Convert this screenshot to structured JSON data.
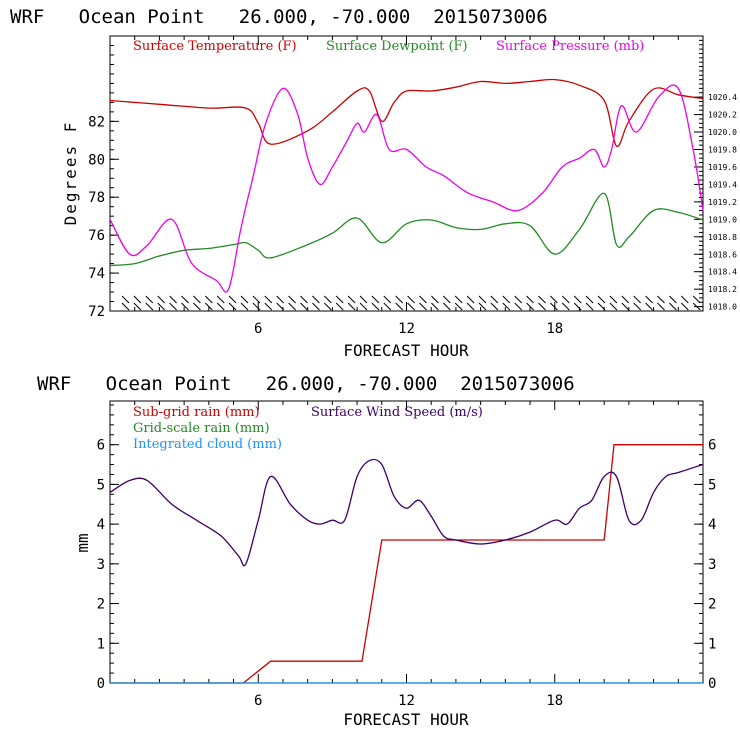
{
  "chart_data": [
    {
      "type": "line",
      "title": "WRF   Ocean Point   26.000, -70.000  2015073006",
      "xlabel": "FORECAST HOUR",
      "ylabel": "Degrees F",
      "xlim": [
        0,
        24
      ],
      "ylim": [
        72,
        86.5
      ],
      "y2lim": [
        1017.95,
        1021.1
      ],
      "x_ticks": [
        6,
        12,
        18
      ],
      "y_ticks": [
        72,
        74,
        76,
        78,
        80,
        82
      ],
      "y2_ticks": [
        1018.0,
        1018.2,
        1018.4,
        1018.6,
        1018.8,
        1019.0,
        1019.2,
        1019.4,
        1019.6,
        1019.8,
        1020.0,
        1020.2,
        1020.4
      ],
      "y2_tick_labels": [
        "1018.0",
        "1018.2",
        "1018.4",
        "1018.6",
        "1018.8",
        "1019.0",
        "1019.2",
        "1019.4",
        "1019.6",
        "1019.8",
        "1020.0",
        "1020.2",
        "1020.4"
      ],
      "wind_barbs": "calm barbs along bottom of panel",
      "series": [
        {
          "name": "Surface Temperature (F)",
          "color": "#cc0000",
          "axis": "left",
          "x": [
            0,
            2,
            4,
            5.5,
            6,
            6.5,
            8,
            9,
            10,
            10.5,
            11,
            11.5,
            12,
            13,
            14,
            15,
            16,
            17,
            18,
            19,
            20,
            20.5,
            21,
            22,
            23,
            24
          ],
          "y": [
            83.1,
            82.9,
            82.7,
            82.7,
            81.9,
            80.8,
            81.5,
            82.5,
            83.6,
            83.6,
            82.0,
            83.0,
            83.6,
            83.6,
            83.8,
            84.1,
            84.0,
            84.1,
            84.2,
            83.9,
            83.1,
            80.7,
            82.0,
            83.7,
            83.4,
            83.2
          ]
        },
        {
          "name": "Surface Dewpoint (F)",
          "color": "#228b22",
          "axis": "left",
          "x": [
            0,
            1,
            2,
            3,
            4,
            5,
            5.5,
            6,
            6.5,
            8,
            9,
            10,
            11,
            12,
            13,
            14,
            15,
            16,
            17,
            18,
            19,
            20,
            20.5,
            21,
            22,
            23,
            24
          ],
          "y": [
            74.4,
            74.5,
            74.9,
            75.2,
            75.3,
            75.5,
            75.6,
            75.2,
            74.8,
            75.5,
            76.1,
            76.9,
            75.6,
            76.6,
            76.8,
            76.4,
            76.3,
            76.6,
            76.5,
            75.0,
            76.3,
            78.2,
            75.5,
            75.9,
            77.3,
            77.2,
            76.8
          ]
        },
        {
          "name": "Surface Pressure (mb)",
          "color": "#ee00ee",
          "axis": "right",
          "x": [
            0,
            0.8,
            1.5,
            2.5,
            3.3,
            4.3,
            4.8,
            5.3,
            5.8,
            6.3,
            7,
            7.6,
            8,
            8.5,
            9,
            9.6,
            10,
            10.3,
            10.8,
            11.3,
            12,
            12.8,
            13.5,
            14.5,
            15.5,
            16.5,
            17.5,
            18.3,
            19,
            19.6,
            20,
            20.3,
            20.7,
            21.3,
            22.2,
            23,
            23.6,
            24
          ],
          "y": [
            1019.0,
            1018.6,
            1018.7,
            1019.0,
            1018.5,
            1018.3,
            1018.2,
            1018.9,
            1019.5,
            1020.1,
            1020.5,
            1020.2,
            1019.7,
            1019.4,
            1019.6,
            1019.9,
            1020.1,
            1020.0,
            1020.2,
            1019.8,
            1019.8,
            1019.6,
            1019.5,
            1019.3,
            1019.2,
            1019.1,
            1019.3,
            1019.6,
            1019.7,
            1019.8,
            1019.6,
            1019.8,
            1020.3,
            1020.0,
            1020.4,
            1020.5,
            1019.8,
            1019.1
          ]
        }
      ]
    },
    {
      "type": "line",
      "title": "WRF   Ocean Point   26.000, -70.000  2015073006",
      "xlabel": "FORECAST HOUR",
      "ylabel": "mm",
      "xlim": [
        0,
        24
      ],
      "ylim": [
        0,
        7.1
      ],
      "y2lim": [
        0,
        7.1
      ],
      "x_ticks": [
        6,
        12,
        18
      ],
      "y_ticks": [
        0,
        1,
        2,
        3,
        4,
        5,
        6
      ],
      "y2_ticks": [
        0,
        1,
        2,
        3,
        4,
        5,
        6
      ],
      "series": [
        {
          "name": "Sub-grid rain (mm)",
          "color": "#cc0000",
          "axis": "left",
          "x": [
            0,
            5.4,
            6.5,
            10.2,
            11,
            20,
            20.4,
            24
          ],
          "y": [
            0,
            0,
            0.55,
            0.55,
            3.6,
            3.6,
            6.0,
            6.0
          ]
        },
        {
          "name": "Grid-scale rain (mm)",
          "color": "#228b22",
          "axis": "left",
          "x": [
            0,
            24
          ],
          "y": [
            0,
            0
          ]
        },
        {
          "name": "Integrated cloud (mm)",
          "color": "#1e90ff",
          "axis": "left",
          "x": [
            0,
            24
          ],
          "y": [
            0,
            0
          ]
        },
        {
          "name": "Surface Wind Speed (m/s)",
          "color": "#3d0066",
          "axis": "right",
          "x": [
            0,
            0.8,
            1.5,
            2.5,
            3.5,
            4.5,
            5.2,
            5.5,
            6,
            6.5,
            7.3,
            8,
            8.5,
            9,
            9.5,
            10,
            10.5,
            11,
            11.5,
            12,
            12.5,
            13,
            13.5,
            14,
            15,
            16,
            17,
            18,
            18.5,
            19,
            19.5,
            20,
            20.5,
            21,
            21.5,
            22,
            22.5,
            23,
            24
          ],
          "y": [
            4.8,
            5.1,
            5.1,
            4.5,
            4.1,
            3.7,
            3.2,
            3.0,
            4.1,
            5.2,
            4.5,
            4.1,
            4.0,
            4.1,
            4.1,
            5.2,
            5.6,
            5.5,
            4.7,
            4.4,
            4.6,
            4.2,
            3.7,
            3.6,
            3.5,
            3.6,
            3.8,
            4.1,
            4.0,
            4.4,
            4.6,
            5.2,
            5.2,
            4.1,
            4.1,
            4.8,
            5.2,
            5.3,
            5.5
          ]
        }
      ]
    }
  ]
}
